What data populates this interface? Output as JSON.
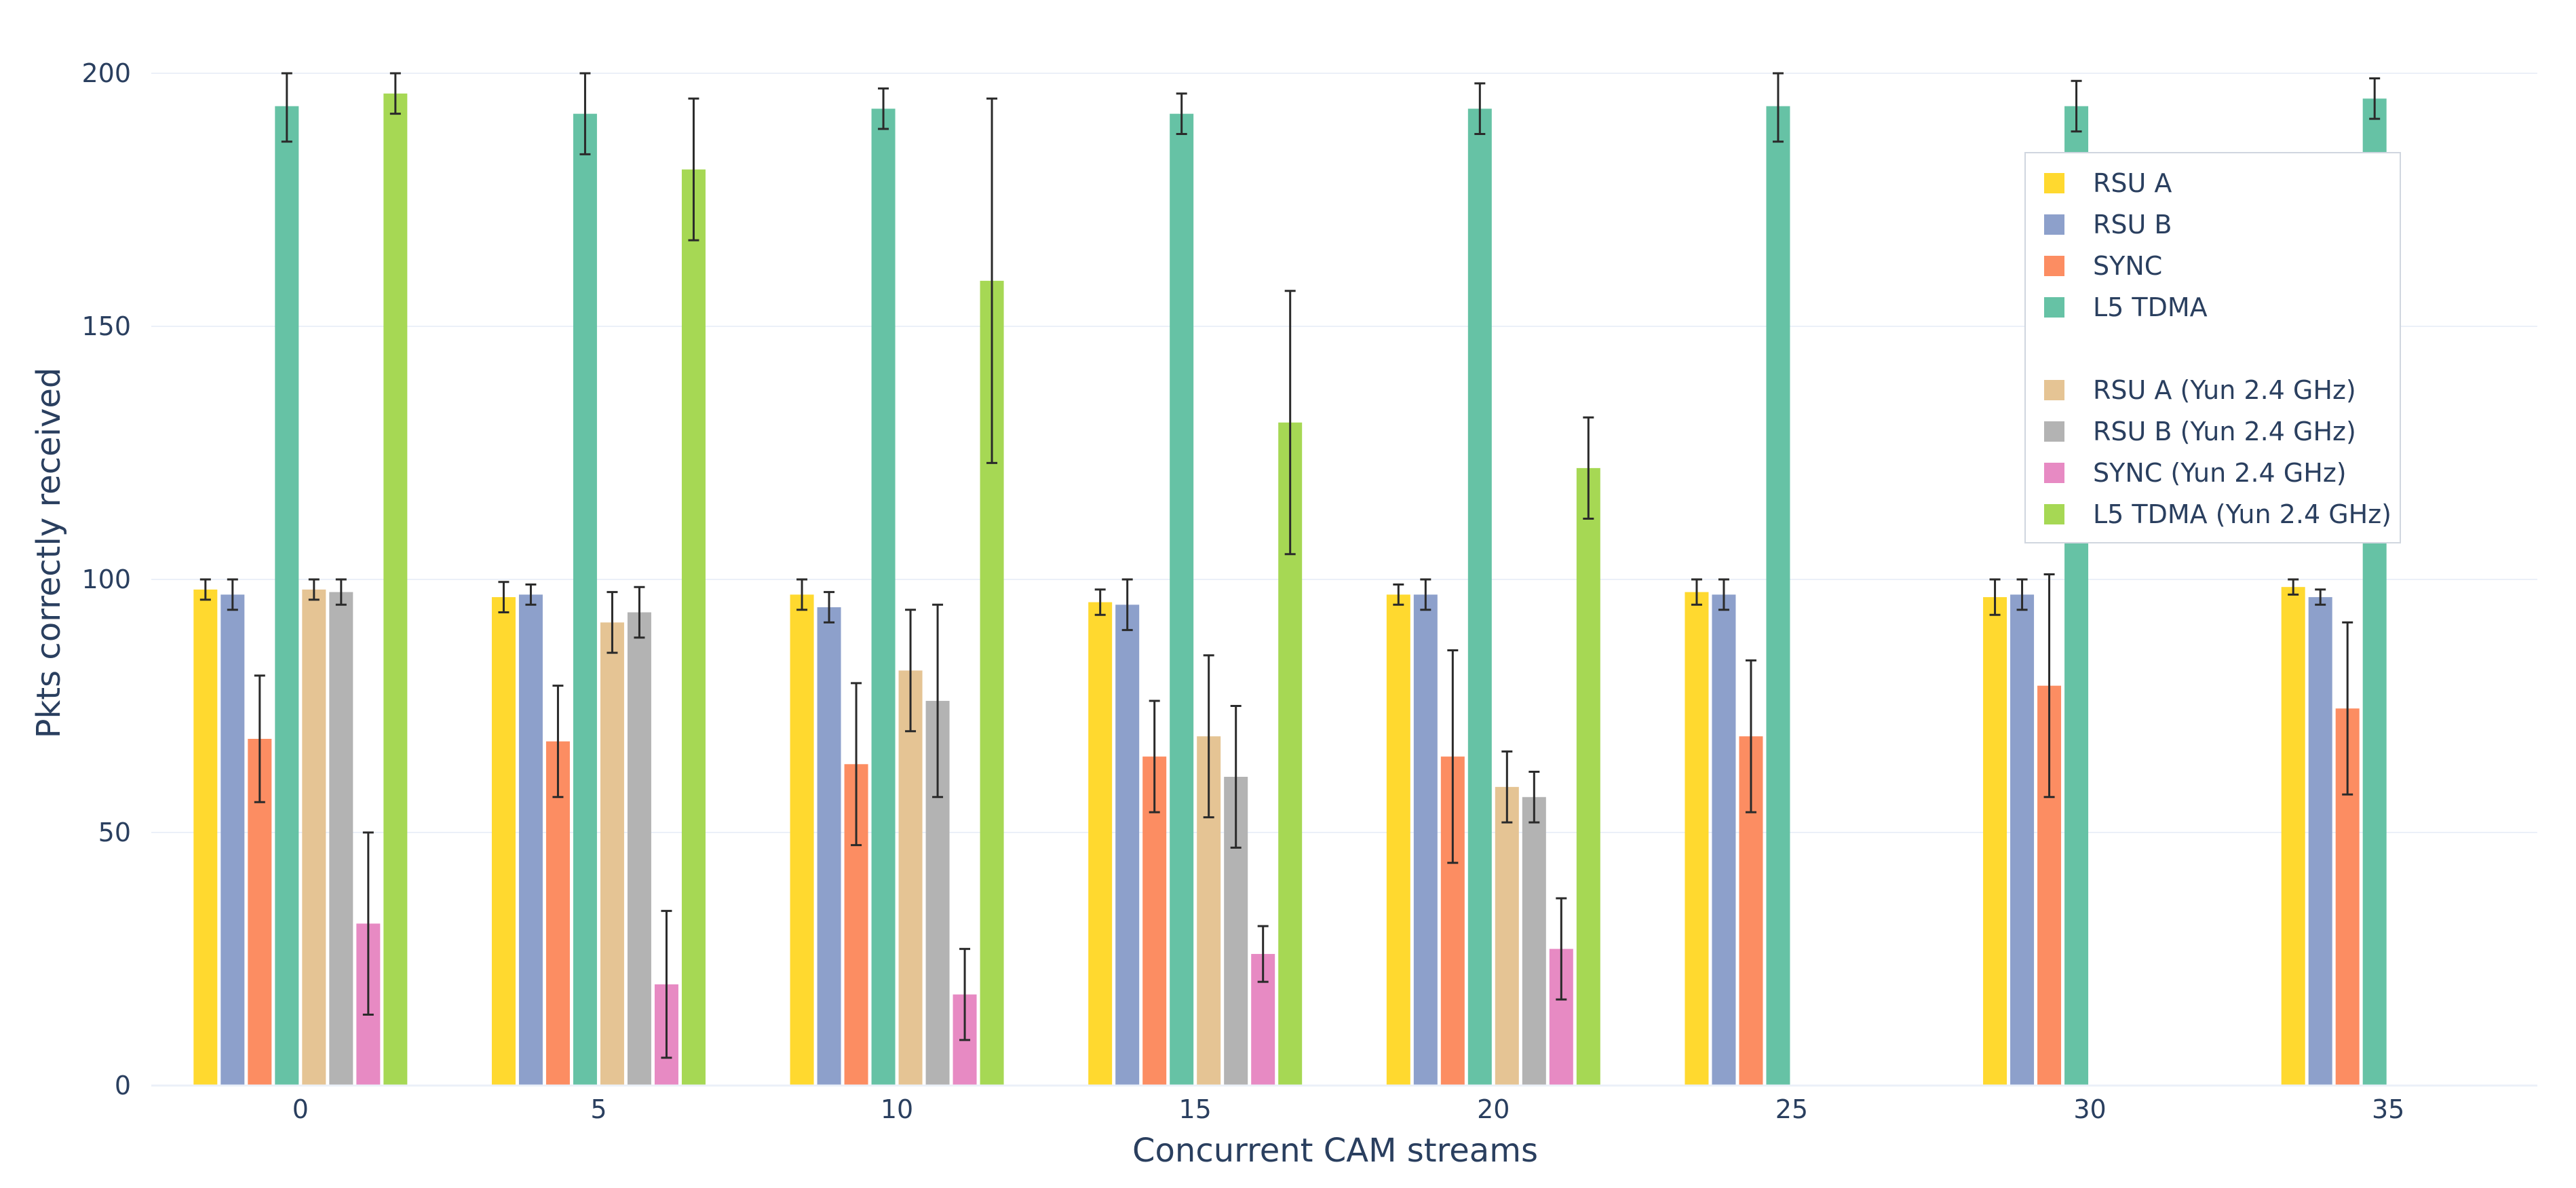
{
  "chart_data": {
    "type": "bar",
    "title": "",
    "xlabel": "Concurrent CAM streams",
    "ylabel": "Pkts correctly received",
    "ylim": [
      0,
      200
    ],
    "yticks": [
      0,
      50,
      100,
      150,
      200
    ],
    "categories": [
      "0",
      "5",
      "10",
      "15",
      "20",
      "25",
      "30",
      "35"
    ],
    "grid": true,
    "legend_position": "top-right",
    "series": [
      {
        "name": "RSU A",
        "color": "#ffd92f",
        "values": [
          98,
          96.5,
          97,
          95.5,
          97,
          97.5,
          96.5,
          98.5
        ],
        "errors": [
          2,
          3,
          3,
          2.5,
          2,
          2.5,
          3.5,
          1.5
        ]
      },
      {
        "name": "RSU B",
        "color": "#8da0cb",
        "values": [
          97,
          97,
          94.5,
          95,
          97,
          97,
          97,
          96.5
        ],
        "errors": [
          3,
          2,
          3,
          5,
          3,
          3,
          3,
          1.5
        ]
      },
      {
        "name": "SYNC",
        "color": "#fc8d62",
        "values": [
          68.5,
          68,
          63.5,
          65,
          65,
          69,
          79,
          74.5
        ],
        "errors": [
          12.5,
          11,
          16,
          11,
          21,
          15,
          22,
          17
        ]
      },
      {
        "name": "L5 TDMA",
        "color": "#66c2a5",
        "values": [
          193.5,
          192,
          193,
          192,
          193,
          193.5,
          193.5,
          195
        ],
        "errors": [
          7,
          8,
          4,
          4,
          5,
          7,
          5,
          4
        ]
      },
      {
        "name": "RSU A (Yun 2.4 GHz)",
        "color": "#e5c494",
        "values": [
          98,
          91.5,
          82,
          69,
          59,
          null,
          null,
          null
        ],
        "errors": [
          2,
          6,
          12,
          16,
          7,
          null,
          null,
          null
        ]
      },
      {
        "name": "RSU B (Yun 2.4 GHz)",
        "color": "#b3b3b3",
        "values": [
          97.5,
          93.5,
          76,
          61,
          57,
          null,
          null,
          null
        ],
        "errors": [
          2.5,
          5,
          19,
          14,
          5,
          null,
          null,
          null
        ]
      },
      {
        "name": "SYNC (Yun 2.4 GHz)",
        "color": "#e78ac3",
        "values": [
          32,
          20,
          18,
          26,
          27,
          null,
          null,
          null
        ],
        "errors": [
          18,
          14.5,
          9,
          5.5,
          10,
          null,
          null,
          null
        ]
      },
      {
        "name": "L5 TDMA (Yun 2.4 GHz)",
        "color": "#a6d854",
        "values": [
          196,
          181,
          159,
          131,
          122,
          null,
          null,
          null
        ],
        "errors": [
          4,
          14,
          36,
          26,
          10,
          null,
          null,
          null
        ]
      }
    ]
  }
}
